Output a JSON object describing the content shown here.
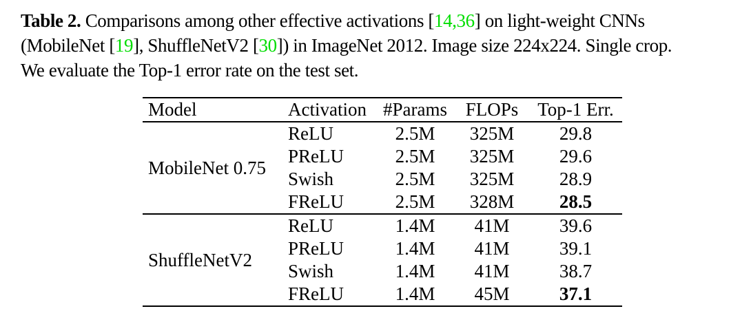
{
  "colors": {
    "background": "#ffffff",
    "text": "#000000",
    "citation_green": "#00dd00",
    "rule": "#000000"
  },
  "caption": {
    "lines": [
      {
        "segments": [
          {
            "text": "Table 2.",
            "style": "bold"
          },
          {
            "text": " Comparisons among other effective activations [",
            "style": "normal"
          },
          {
            "text": "14,36",
            "style": "cite"
          },
          {
            "text": "] on light-weight CNNs",
            "style": "normal"
          }
        ]
      },
      {
        "segments": [
          {
            "text": "(MobileNet [",
            "style": "normal"
          },
          {
            "text": "19",
            "style": "cite"
          },
          {
            "text": "], ShuffleNetV2 [",
            "style": "normal"
          },
          {
            "text": "30",
            "style": "cite"
          },
          {
            "text": "]) in ImageNet 2012. Image size 224x224. Single crop.",
            "style": "normal"
          }
        ]
      },
      {
        "segments": [
          {
            "text": "We evaluate the Top-1 error rate on the test set.",
            "style": "normal"
          }
        ]
      }
    ]
  },
  "table": {
    "headers": [
      {
        "id": "model",
        "label": "Model",
        "align": "left"
      },
      {
        "id": "activation",
        "label": "Activation",
        "align": "left"
      },
      {
        "id": "params",
        "label": "#Params",
        "align": "center"
      },
      {
        "id": "flops",
        "label": "FLOPs",
        "align": "center"
      },
      {
        "id": "top1",
        "label": "Top-1 Err.",
        "align": "center"
      }
    ],
    "groups": [
      {
        "model": "MobileNet 0.75",
        "rows": [
          {
            "activation": "ReLU",
            "params": "2.5M",
            "flops": "325M",
            "top1_err": "29.8",
            "top1_bold": false
          },
          {
            "activation": "PReLU",
            "params": "2.5M",
            "flops": "325M",
            "top1_err": "29.6",
            "top1_bold": false
          },
          {
            "activation": "Swish",
            "params": "2.5M",
            "flops": "325M",
            "top1_err": "28.9",
            "top1_bold": false
          },
          {
            "activation": "FReLU",
            "params": "2.5M",
            "flops": "328M",
            "top1_err": "28.5",
            "top1_bold": true
          }
        ]
      },
      {
        "model": "ShuffleNetV2",
        "rows": [
          {
            "activation": "ReLU",
            "params": "1.4M",
            "flops": "41M",
            "top1_err": "39.6",
            "top1_bold": false
          },
          {
            "activation": "PReLU",
            "params": "1.4M",
            "flops": "41M",
            "top1_err": "39.1",
            "top1_bold": false
          },
          {
            "activation": "Swish",
            "params": "1.4M",
            "flops": "41M",
            "top1_err": "38.7",
            "top1_bold": false
          },
          {
            "activation": "FReLU",
            "params": "1.4M",
            "flops": "45M",
            "top1_err": "37.1",
            "top1_bold": true
          }
        ]
      }
    ]
  }
}
